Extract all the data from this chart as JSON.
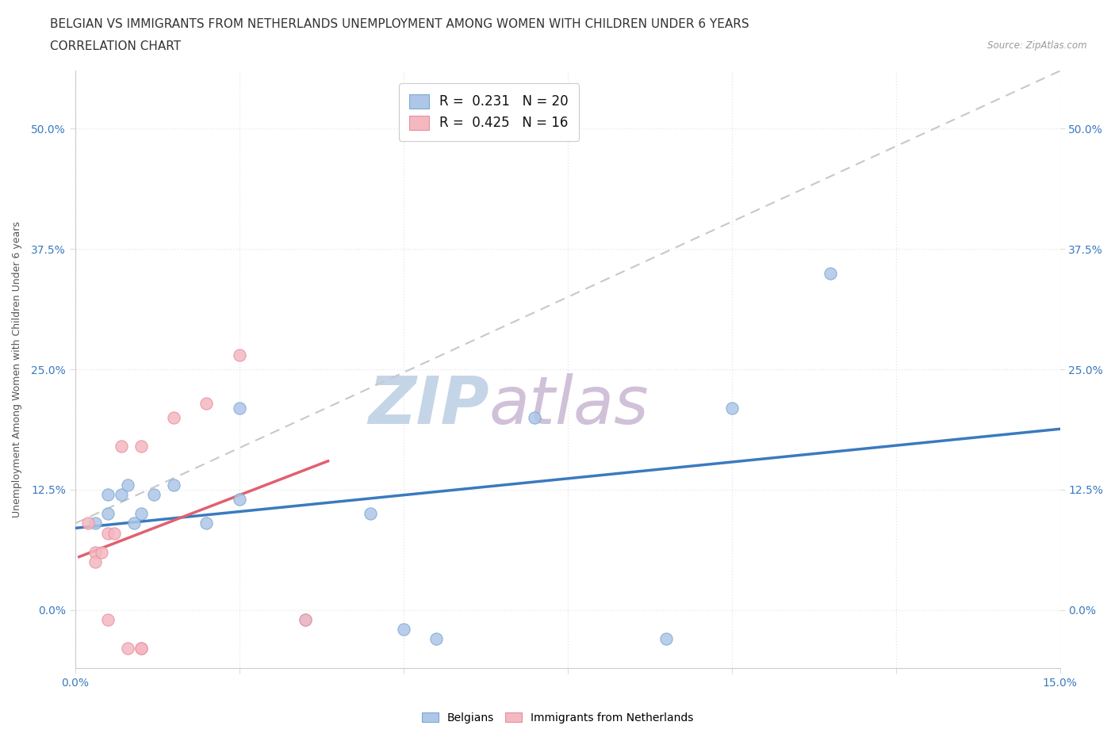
{
  "title_line1": "BELGIAN VS IMMIGRANTS FROM NETHERLANDS UNEMPLOYMENT AMONG WOMEN WITH CHILDREN UNDER 6 YEARS",
  "title_line2": "CORRELATION CHART",
  "source": "Source: ZipAtlas.com",
  "ylabel": "Unemployment Among Women with Children Under 6 years",
  "xlim": [
    0.0,
    0.15
  ],
  "ylim": [
    -0.06,
    0.56
  ],
  "x_ticks": [
    0.0,
    0.025,
    0.05,
    0.075,
    0.1,
    0.125,
    0.15
  ],
  "y_ticks": [
    0.0,
    0.125,
    0.25,
    0.375,
    0.5
  ],
  "x_tick_labels": [
    "0.0%",
    "",
    "",
    "",
    "",
    "",
    "15.0%"
  ],
  "y_tick_labels": [
    "0.0%",
    "12.5%",
    "25.0%",
    "37.5%",
    "50.0%"
  ],
  "belgians_x": [
    0.003,
    0.005,
    0.005,
    0.007,
    0.008,
    0.009,
    0.01,
    0.012,
    0.015,
    0.02,
    0.025,
    0.025,
    0.035,
    0.045,
    0.05,
    0.055,
    0.07,
    0.09,
    0.1,
    0.115
  ],
  "belgians_y": [
    0.09,
    0.1,
    0.12,
    0.12,
    0.13,
    0.09,
    0.1,
    0.12,
    0.13,
    0.09,
    0.21,
    0.115,
    -0.01,
    0.1,
    -0.02,
    -0.03,
    0.2,
    -0.03,
    0.21,
    0.35
  ],
  "immigrants_x": [
    0.002,
    0.003,
    0.003,
    0.004,
    0.005,
    0.005,
    0.006,
    0.007,
    0.008,
    0.01,
    0.01,
    0.01,
    0.015,
    0.02,
    0.025,
    0.035
  ],
  "immigrants_y": [
    0.09,
    0.06,
    0.05,
    0.06,
    0.08,
    -0.01,
    0.08,
    0.17,
    -0.04,
    -0.04,
    -0.04,
    0.17,
    0.2,
    0.215,
    0.265,
    -0.01
  ],
  "belgian_color": "#aec6e8",
  "immigrant_color": "#f4b8c1",
  "belgian_edge_color": "#7aaad0",
  "immigrant_edge_color": "#e8909f",
  "belgian_line_color": "#3a7abf",
  "immigrant_line_color": "#e06070",
  "trendline_dashed_color": "#c8c8c8",
  "R_belgian": 0.231,
  "N_belgian": 20,
  "R_immigrant": 0.425,
  "N_immigrant": 16,
  "background_color": "#ffffff",
  "grid_color": "#e8e8e8",
  "watermark_zip": "ZIP",
  "watermark_atlas": "atlas",
  "watermark_color_zip": "#c5d5e8",
  "watermark_color_atlas": "#d0c0d8",
  "title_fontsize": 11,
  "subtitle_fontsize": 11,
  "axis_label_fontsize": 9,
  "tick_fontsize": 10,
  "tick_color": "#3a7abf",
  "ylabel_color": "#555555"
}
